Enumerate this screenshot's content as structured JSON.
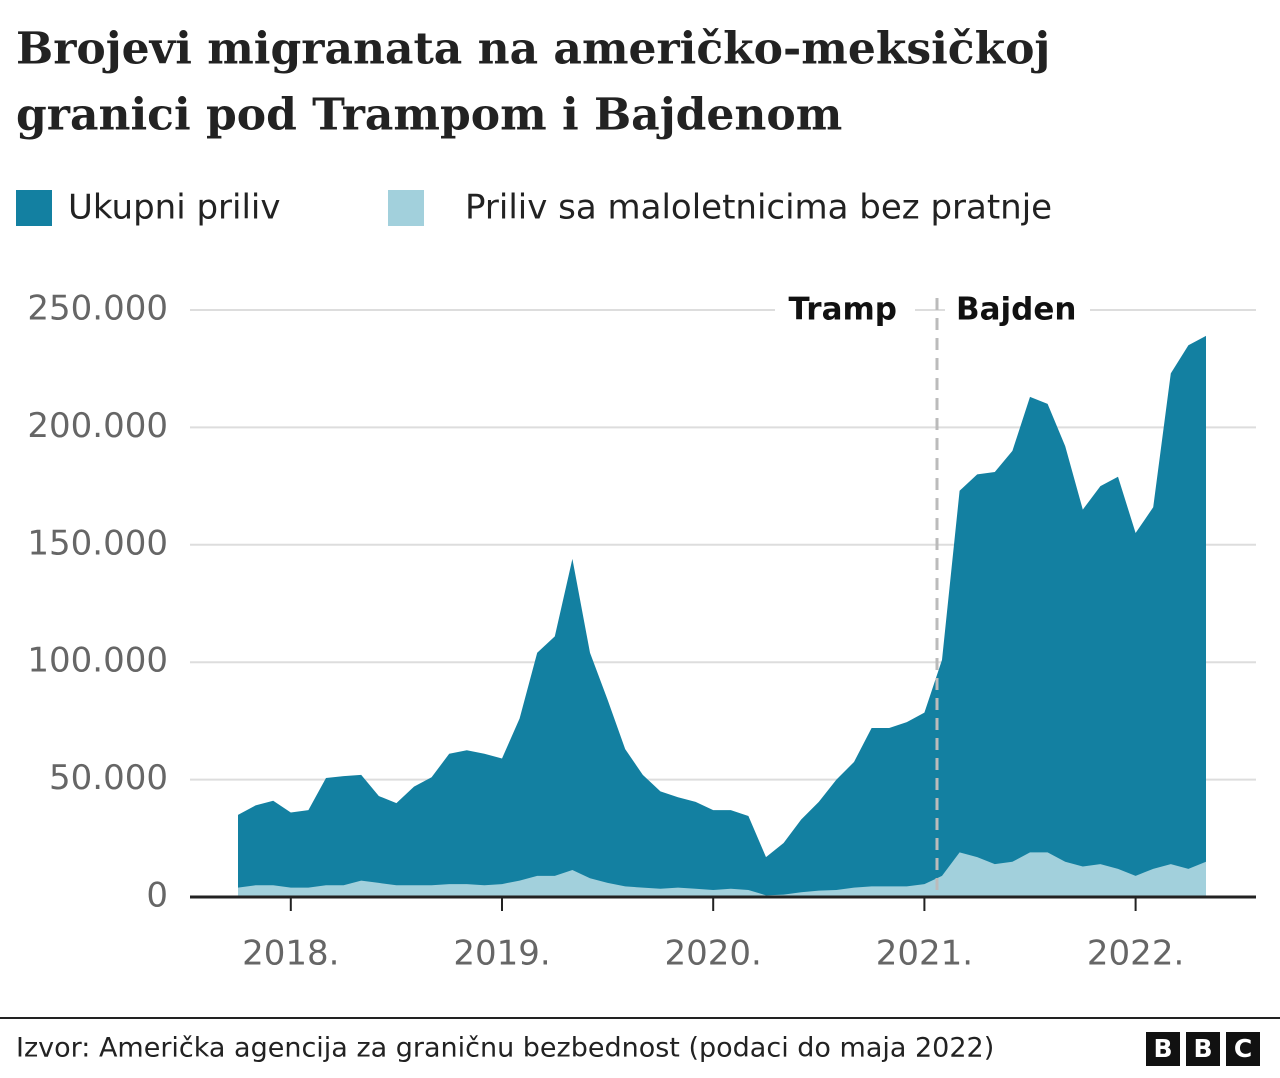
{
  "chart_data": {
    "type": "area",
    "title": [
      "Brojevi migranata na američko-meksičkoj",
      "granici pod Trampom i Bajdenom"
    ],
    "categories": [
      null,
      null,
      null,
      "2018.",
      null,
      null,
      null,
      null,
      null,
      null,
      null,
      null,
      null,
      null,
      null,
      "2019.",
      null,
      null,
      null,
      null,
      null,
      null,
      null,
      null,
      null,
      null,
      null,
      "2020.",
      null,
      null,
      null,
      null,
      null,
      null,
      null,
      null,
      null,
      null,
      null,
      "2021.",
      null,
      null,
      null,
      null,
      null,
      null,
      null,
      null,
      null,
      null,
      null,
      "2022.",
      null,
      null,
      null,
      null
    ],
    "series": [
      {
        "name": "Ukupni priliv",
        "color": "#1380a1",
        "values": [
          35000,
          39000,
          41000,
          36000,
          37000,
          50700,
          51500,
          52000,
          43000,
          40000,
          47000,
          51000,
          61000,
          62500,
          61000,
          59000,
          76000,
          104000,
          111000,
          144000,
          104000,
          84000,
          63000,
          52000,
          45000,
          42500,
          40500,
          37000,
          37000,
          34500,
          17000,
          23000,
          33000,
          40500,
          50000,
          57500,
          72000,
          72000,
          74500,
          78500,
          101000,
          173000,
          180000,
          181000,
          190000,
          213000,
          210000,
          192000,
          165000,
          175000,
          179000,
          155000,
          166000,
          223000,
          235000,
          239000
        ]
      },
      {
        "name": "Priliv sa maloletnicima bez pratnje",
        "color": "#a2d0dc",
        "values": [
          4000,
          5000,
          5000,
          4000,
          4000,
          5000,
          5000,
          7000,
          6000,
          5000,
          5000,
          5000,
          5500,
          5500,
          5000,
          5500,
          7000,
          9000,
          9000,
          11500,
          8000,
          6000,
          4500,
          4000,
          3500,
          4000,
          3500,
          3000,
          3500,
          3000,
          700,
          1000,
          2000,
          2700,
          3000,
          4000,
          4500,
          4500,
          4500,
          5500,
          9000,
          19000,
          17000,
          14000,
          15000,
          19000,
          19000,
          15000,
          13000,
          14000,
          12000,
          9000,
          12000,
          14000,
          12000,
          15000
        ]
      }
    ],
    "ylim": [
      0,
      250000
    ],
    "yticks": [
      0,
      {
        "value": 50000,
        "label": "50.000"
      },
      {
        "value": 100000,
        "label": "100.000"
      },
      {
        "value": 150000,
        "label": "150.000"
      },
      {
        "value": 200000,
        "label": "200.000"
      },
      {
        "value": 250000,
        "label": "250.000"
      }
    ],
    "grid": true,
    "annotations": [
      "Tramp",
      "Bajden"
    ],
    "source": "Izvor: Američka agencija za graničnu bezbednost (podaci do maja 2022)",
    "logo": [
      "B",
      "B",
      "C"
    ]
  }
}
